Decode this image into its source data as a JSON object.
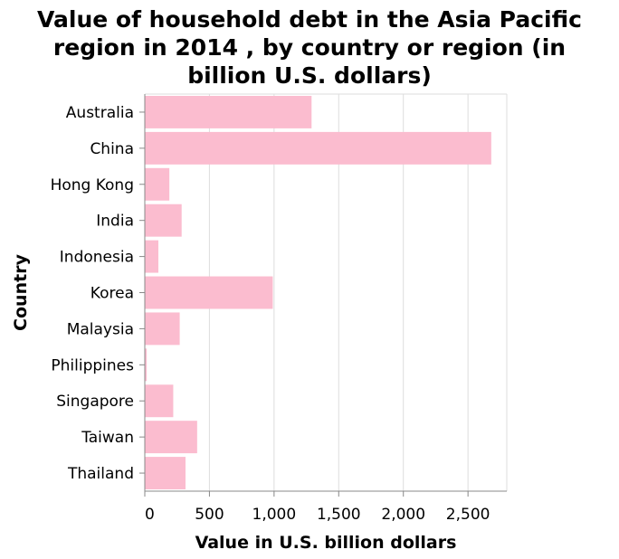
{
  "chart_data": {
    "type": "bar",
    "orientation": "horizontal",
    "title_lines": [
      "Value of household debt in the Asia Pacific",
      "region in 2014 , by country or region (in",
      "billion U.S. dollars)"
    ],
    "xlabel": "Value in U.S. billion dollars",
    "ylabel": "Country",
    "categories": [
      "Australia",
      "China",
      "Hong Kong",
      "India",
      "Indonesia",
      "Korea",
      "Malaysia",
      "Philippines",
      "Singapore",
      "Taiwan",
      "Thailand"
    ],
    "values": [
      1290,
      2680,
      190,
      285,
      105,
      990,
      270,
      15,
      220,
      405,
      315
    ],
    "xlim": [
      0,
      2800
    ],
    "xticks": [
      0,
      500,
      1000,
      1500,
      2000,
      2500
    ],
    "xtick_labels": [
      "0",
      "500",
      "1,000",
      "1,500",
      "2,000",
      "2,500"
    ],
    "grid": true,
    "bar_color": "#fbbccf",
    "grid_color": "#dddddd",
    "axis_color": "#888888"
  }
}
